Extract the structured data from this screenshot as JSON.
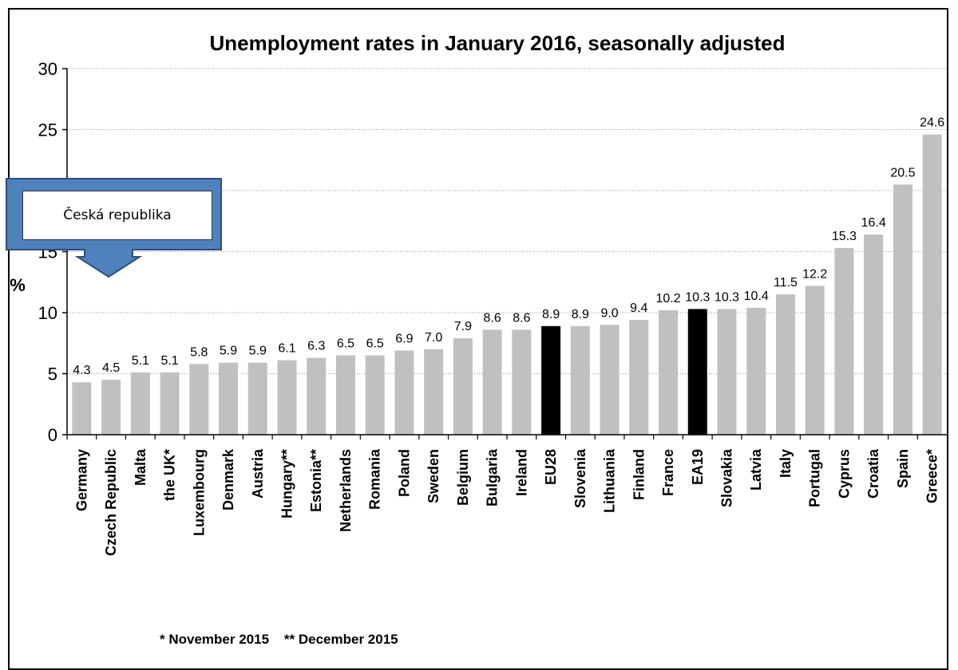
{
  "chart_data": {
    "type": "bar",
    "title": "Unemployment rates in January 2016, seasonally adjusted",
    "ylabel": "%",
    "ylim": [
      0,
      30
    ],
    "yticks": [
      "0",
      "5",
      "10",
      "15",
      "20",
      "25",
      "30"
    ],
    "grid": true,
    "categories": [
      "Germany",
      "Czech Republic",
      "Malta",
      "the UK*",
      "Luxembourg",
      "Denmark",
      "Austria",
      "Hungary**",
      "Estonia**",
      "Netherlands",
      "Romania",
      "Poland",
      "Sweden",
      "Belgium",
      "Bulgaria",
      "Ireland",
      "EU28",
      "Slovenia",
      "Lithuania",
      "Finland",
      "France",
      "EA19",
      "Slovakia",
      "Latvia",
      "Italy",
      "Portugal",
      "Cyprus",
      "Croatia",
      "Spain",
      "Greece*"
    ],
    "values": [
      4.3,
      4.5,
      5.1,
      5.1,
      5.8,
      5.9,
      5.9,
      6.1,
      6.3,
      6.5,
      6.5,
      6.9,
      7.0,
      7.9,
      8.6,
      8.6,
      8.9,
      8.9,
      9.0,
      9.4,
      10.2,
      10.3,
      10.3,
      10.4,
      11.5,
      12.2,
      15.3,
      16.4,
      20.5,
      24.6
    ],
    "value_labels": [
      "4.3",
      "4.5",
      "5.1",
      "5.1",
      "5.8",
      "5.9",
      "5.9",
      "6.1",
      "6.3",
      "6.5",
      "6.5",
      "6.9",
      "7.0",
      "7.9",
      "8.6",
      "8.6",
      "8.9",
      "8.9",
      "9.0",
      "9.4",
      "10.2",
      "10.3",
      "10.3",
      "10.4",
      "11.5",
      "12.2",
      "15.3",
      "16.4",
      "20.5",
      "24.6"
    ],
    "highlighted": [
      "EU28",
      "EA19"
    ],
    "colors": {
      "bar": "#c0c0c0",
      "highlight": "#000000",
      "grid": "#9a9a9a",
      "callout_arrow": "#4f81bd",
      "callout_arrow_border": "#2f4f7a"
    },
    "footnote": "* November 2015    ** December 2015"
  },
  "callout": {
    "label": "Česká republika"
  }
}
